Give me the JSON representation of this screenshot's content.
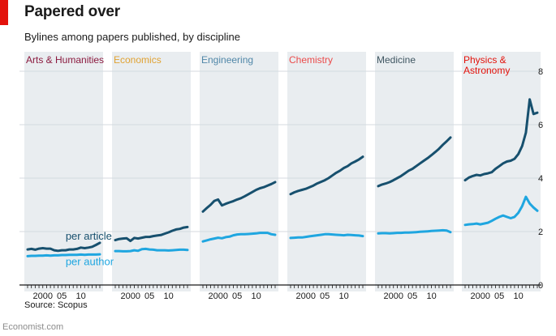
{
  "title": "Papered over",
  "subtitle": "Bylines among papers published, by discipline",
  "source": "Source: Scopus",
  "brand": "Economist.com",
  "colors": {
    "per_article": "#17506e",
    "per_author": "#1fa6e0",
    "panel_bg": "#e9edf0",
    "brand_red": "#e3120b"
  },
  "chart_data": {
    "type": "line",
    "title": "Papered over",
    "subtitle": "Bylines among papers published, by discipline",
    "ylim": [
      0,
      8
    ],
    "y_ticks": [
      0,
      2,
      4,
      6,
      8
    ],
    "xlim": [
      1996,
      2015
    ],
    "x_ticks": [
      2000,
      2005,
      2010
    ],
    "x_tick_labels": [
      "2000",
      "05",
      "10"
    ],
    "grid": true,
    "series_names": [
      "per article",
      "per author"
    ],
    "series_label_anchor": {
      "per article": [
        2006,
        1.7
      ],
      "per author": [
        2006,
        0.75
      ]
    },
    "panels": [
      {
        "name": "Arts & Humanities",
        "label_lines": [
          "Arts & Humanities"
        ],
        "color": "#8b1a3e",
        "series": [
          {
            "name": "per article",
            "x": [
              1996,
              1997,
              1998,
              1999,
              2000,
              2001,
              2002,
              2003,
              2004,
              2005,
              2006,
              2007,
              2008,
              2009,
              2010,
              2011,
              2012,
              2013,
              2014,
              2015
            ],
            "values": [
              1.33,
              1.35,
              1.32,
              1.36,
              1.38,
              1.36,
              1.36,
              1.3,
              1.28,
              1.3,
              1.3,
              1.33,
              1.33,
              1.35,
              1.4,
              1.38,
              1.4,
              1.43,
              1.5,
              1.58
            ]
          },
          {
            "name": "per author",
            "x": [
              1996,
              1997,
              1998,
              1999,
              2000,
              2001,
              2002,
              2003,
              2004,
              2005,
              2006,
              2007,
              2008,
              2009,
              2010,
              2011,
              2012,
              2013,
              2014,
              2015
            ],
            "values": [
              1.08,
              1.09,
              1.09,
              1.1,
              1.1,
              1.11,
              1.1,
              1.11,
              1.11,
              1.12,
              1.12,
              1.13,
              1.13,
              1.13,
              1.14,
              1.13,
              1.14,
              1.14,
              1.14,
              1.15
            ]
          }
        ]
      },
      {
        "name": "Economics",
        "label_lines": [
          "Economics"
        ],
        "color": "#e0a232",
        "series": [
          {
            "name": "per article",
            "x": [
              1996,
              1997,
              1998,
              1999,
              2000,
              2001,
              2002,
              2003,
              2004,
              2005,
              2006,
              2007,
              2008,
              2009,
              2010,
              2011,
              2012,
              2013,
              2014,
              2015
            ],
            "values": [
              1.68,
              1.72,
              1.74,
              1.75,
              1.65,
              1.76,
              1.74,
              1.77,
              1.8,
              1.8,
              1.83,
              1.85,
              1.87,
              1.92,
              1.97,
              2.03,
              2.08,
              2.1,
              2.15,
              2.17
            ]
          },
          {
            "name": "per author",
            "x": [
              1996,
              1997,
              1998,
              1999,
              2000,
              2001,
              2002,
              2003,
              2004,
              2005,
              2006,
              2007,
              2008,
              2009,
              2010,
              2011,
              2012,
              2013,
              2014,
              2015
            ],
            "values": [
              1.27,
              1.27,
              1.26,
              1.26,
              1.27,
              1.3,
              1.28,
              1.34,
              1.35,
              1.33,
              1.32,
              1.3,
              1.3,
              1.3,
              1.29,
              1.3,
              1.31,
              1.32,
              1.32,
              1.31
            ]
          }
        ]
      },
      {
        "name": "Engineering",
        "label_lines": [
          "Engineering"
        ],
        "color": "#5087a8",
        "series": [
          {
            "name": "per article",
            "x": [
              1996,
              1997,
              1998,
              1999,
              2000,
              2001,
              2002,
              2003,
              2004,
              2005,
              2006,
              2007,
              2008,
              2009,
              2010,
              2011,
              2012,
              2013,
              2014,
              2015
            ],
            "values": [
              2.75,
              2.88,
              3.0,
              3.15,
              3.2,
              2.98,
              3.04,
              3.09,
              3.14,
              3.2,
              3.25,
              3.32,
              3.4,
              3.48,
              3.56,
              3.62,
              3.66,
              3.72,
              3.78,
              3.85
            ]
          },
          {
            "name": "per author",
            "x": [
              1996,
              1997,
              1998,
              1999,
              2000,
              2001,
              2002,
              2003,
              2004,
              2005,
              2006,
              2007,
              2008,
              2009,
              2010,
              2011,
              2012,
              2013,
              2014,
              2015
            ],
            "values": [
              1.63,
              1.67,
              1.71,
              1.74,
              1.77,
              1.75,
              1.79,
              1.81,
              1.86,
              1.89,
              1.9,
              1.9,
              1.91,
              1.92,
              1.93,
              1.95,
              1.95,
              1.95,
              1.9,
              1.88
            ]
          }
        ]
      },
      {
        "name": "Chemistry",
        "label_lines": [
          "Chemistry"
        ],
        "color": "#eb4b4b",
        "series": [
          {
            "name": "per article",
            "x": [
              1996,
              1997,
              1998,
              1999,
              2000,
              2001,
              2002,
              2003,
              2004,
              2005,
              2006,
              2007,
              2008,
              2009,
              2010,
              2011,
              2012,
              2013,
              2014,
              2015
            ],
            "values": [
              3.4,
              3.47,
              3.52,
              3.56,
              3.6,
              3.66,
              3.72,
              3.8,
              3.86,
              3.92,
              4.0,
              4.1,
              4.2,
              4.28,
              4.38,
              4.45,
              4.55,
              4.62,
              4.7,
              4.8
            ]
          },
          {
            "name": "per author",
            "x": [
              1996,
              1997,
              1998,
              1999,
              2000,
              2001,
              2002,
              2003,
              2004,
              2005,
              2006,
              2007,
              2008,
              2009,
              2010,
              2011,
              2012,
              2013,
              2014,
              2015
            ],
            "values": [
              1.76,
              1.77,
              1.78,
              1.78,
              1.8,
              1.82,
              1.84,
              1.86,
              1.88,
              1.9,
              1.9,
              1.89,
              1.88,
              1.87,
              1.86,
              1.88,
              1.87,
              1.86,
              1.85,
              1.83
            ]
          }
        ]
      },
      {
        "name": "Medicine",
        "label_lines": [
          "Medicine"
        ],
        "color": "#3f5661",
        "series": [
          {
            "name": "per article",
            "x": [
              1996,
              1997,
              1998,
              1999,
              2000,
              2001,
              2002,
              2003,
              2004,
              2005,
              2006,
              2007,
              2008,
              2009,
              2010,
              2011,
              2012,
              2013,
              2014,
              2015
            ],
            "values": [
              3.7,
              3.76,
              3.8,
              3.85,
              3.92,
              4.0,
              4.08,
              4.18,
              4.28,
              4.35,
              4.45,
              4.55,
              4.65,
              4.75,
              4.86,
              4.98,
              5.1,
              5.25,
              5.38,
              5.52
            ]
          },
          {
            "name": "per author",
            "x": [
              1996,
              1997,
              1998,
              1999,
              2000,
              2001,
              2002,
              2003,
              2004,
              2005,
              2006,
              2007,
              2008,
              2009,
              2010,
              2011,
              2012,
              2013,
              2014,
              2015
            ],
            "values": [
              1.93,
              1.94,
              1.94,
              1.93,
              1.94,
              1.95,
              1.95,
              1.96,
              1.96,
              1.97,
              1.98,
              1.99,
              2.0,
              2.01,
              2.02,
              2.03,
              2.04,
              2.05,
              2.04,
              1.98
            ]
          }
        ]
      },
      {
        "name": "Physics & Astronomy",
        "label_lines": [
          "Physics &",
          "Astronomy"
        ],
        "color": "#e3120b",
        "series": [
          {
            "name": "per article",
            "x": [
              1996,
              1997,
              1998,
              1999,
              2000,
              2001,
              2002,
              2003,
              2004,
              2005,
              2006,
              2007,
              2008,
              2009,
              2010,
              2011,
              2012,
              2013,
              2014,
              2015
            ],
            "values": [
              3.92,
              4.02,
              4.08,
              4.12,
              4.1,
              4.15,
              4.18,
              4.22,
              4.35,
              4.45,
              4.55,
              4.62,
              4.65,
              4.72,
              4.9,
              5.2,
              5.7,
              6.95,
              6.4,
              6.45
            ]
          },
          {
            "name": "per author",
            "x": [
              1996,
              1997,
              1998,
              1999,
              2000,
              2001,
              2002,
              2003,
              2004,
              2005,
              2006,
              2007,
              2008,
              2009,
              2010,
              2011,
              2012,
              2013,
              2014,
              2015
            ],
            "values": [
              2.25,
              2.27,
              2.28,
              2.3,
              2.27,
              2.3,
              2.33,
              2.4,
              2.48,
              2.55,
              2.6,
              2.55,
              2.5,
              2.55,
              2.7,
              2.95,
              3.3,
              3.05,
              2.9,
              2.78
            ]
          }
        ]
      }
    ]
  }
}
